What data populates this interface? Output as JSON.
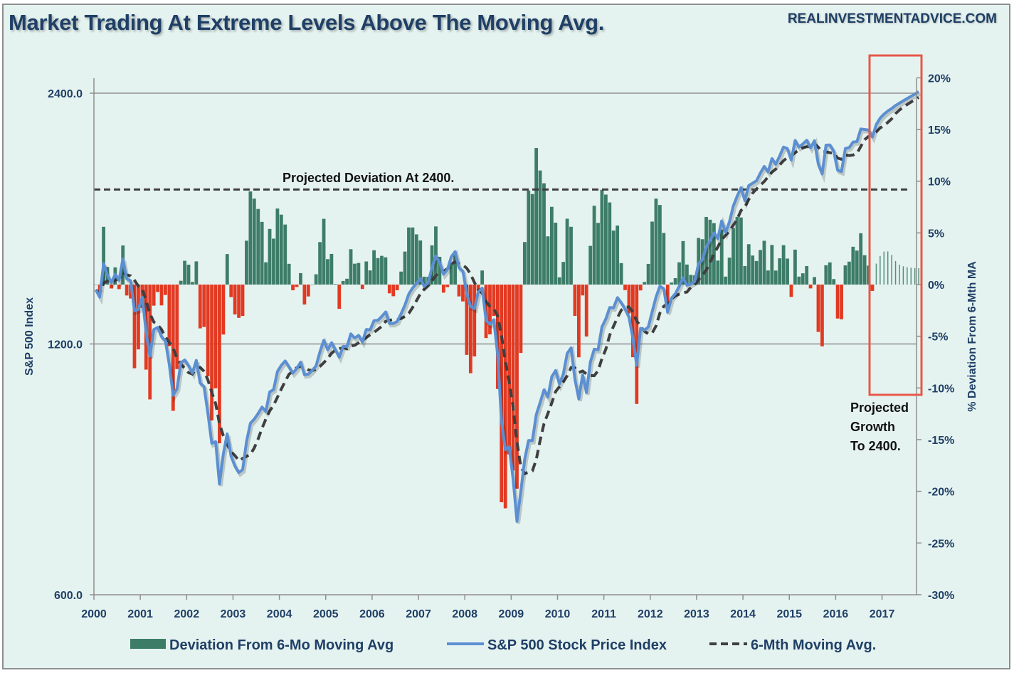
{
  "header": {
    "title": "Market Trading At Extreme Levels Above The Moving Avg.",
    "brand": "REALINVESTMENTADVICE.COM"
  },
  "chart_data": {
    "type": "bar+line",
    "title": "Market Trading At Extreme Levels Above The Moving Avg.",
    "xlabel": "",
    "ylabel_left": "S&P 500 Index",
    "ylabel_right": "% Deviation From 6-Mth MA",
    "x_ticks": [
      "2000",
      "2001",
      "2002",
      "2003",
      "2004",
      "2005",
      "2006",
      "2007",
      "2008",
      "2009",
      "2010",
      "2011",
      "2012",
      "2013",
      "2014",
      "2015",
      "2016",
      "2017"
    ],
    "y_left_scale": "log",
    "y_left_ticks": [
      "2400.0",
      "1200.0",
      "600.0"
    ],
    "y_left_range": [
      600,
      2500
    ],
    "y_right_ticks": [
      "20%",
      "15%",
      "10%",
      "5%",
      "0%",
      "-5%",
      "-10%",
      "-15%",
      "-20%",
      "-25%",
      "-30%"
    ],
    "y_right_range": [
      -30,
      20
    ],
    "grid": "horizontal at left ticks",
    "legend_position": "bottom",
    "colors": {
      "deviation_up": "#3d7d68",
      "deviation_down": "#e23a22",
      "sp500": "#5b8fd2",
      "ma": "#3f3f3f",
      "highlight_box": "#e8584a"
    },
    "start": "2000-01",
    "projection_start": "2016-11",
    "sp500_monthly": [
      1394,
      1366,
      1499,
      1452,
      1421,
      1455,
      1431,
      1518,
      1437,
      1429,
      1315,
      1320,
      1366,
      1240,
      1160,
      1249,
      1256,
      1224,
      1211,
      1134,
      1041,
      1060,
      1139,
      1148,
      1130,
      1107,
      1147,
      1077,
      1067,
      990,
      912,
      916,
      815,
      886,
      936,
      880,
      856,
      841,
      848,
      917,
      964,
      975,
      990,
      1008,
      996,
      1051,
      1058,
      1112,
      1131,
      1145,
      1126,
      1107,
      1121,
      1141,
      1102,
      1104,
      1115,
      1130,
      1174,
      1212,
      1181,
      1204,
      1181,
      1157,
      1192,
      1191,
      1234,
      1220,
      1229,
      1207,
      1249,
      1248,
      1280,
      1281,
      1295,
      1311,
      1270,
      1270,
      1277,
      1304,
      1336,
      1378,
      1401,
      1418,
      1438,
      1407,
      1421,
      1482,
      1531,
      1503,
      1455,
      1474,
      1527,
      1549,
      1481,
      1468,
      1379,
      1331,
      1323,
      1386,
      1400,
      1280,
      1267,
      1283,
      1166,
      969,
      896,
      903,
      826,
      735,
      798,
      873,
      919,
      919,
      987,
      1021,
      1057,
      1036,
      1096,
      1115,
      1074,
      1104,
      1169,
      1187,
      1089,
      1031,
      1102,
      1049,
      1141,
      1183,
      1181,
      1258,
      1286,
      1327,
      1326,
      1364,
      1345,
      1321,
      1292,
      1219,
      1131,
      1253,
      1247,
      1258,
      1312,
      1366,
      1408,
      1398,
      1310,
      1362,
      1379,
      1407,
      1441,
      1412,
      1416,
      1426,
      1498,
      1515,
      1569,
      1598,
      1631,
      1606,
      1686,
      1633,
      1682,
      1757,
      1806,
      1848,
      1783,
      1859,
      1872,
      1884,
      1924,
      1960,
      1931,
      2003,
      1972,
      2018,
      2068,
      2059,
      1995,
      2105,
      2068,
      2086,
      2107,
      2063,
      2104,
      1972,
      1920,
      2079,
      2080,
      2044,
      1940,
      1932,
      2060,
      2065,
      2097,
      2099,
      2174,
      2171,
      2168,
      2126,
      2200,
      2240,
      2265,
      2285,
      2300,
      2320,
      2335,
      2350,
      2365,
      2380,
      2395,
      2410
    ],
    "ma_window_months": 6,
    "projected_deviation_pct": 9.2,
    "series": [
      {
        "name": "Deviation From 6-Mo Moving Avg",
        "type": "bar",
        "axis": "right"
      },
      {
        "name": "S&P 500 Stock Price Index",
        "type": "line",
        "axis": "left"
      },
      {
        "name": "6-Mth Moving Avg.",
        "type": "dashed-line",
        "axis": "left"
      }
    ],
    "annotations": {
      "projected_deviation": "Projected Deviation At 2400.",
      "projected_growth": [
        "Projected",
        "Growth",
        "To 2400."
      ]
    }
  }
}
